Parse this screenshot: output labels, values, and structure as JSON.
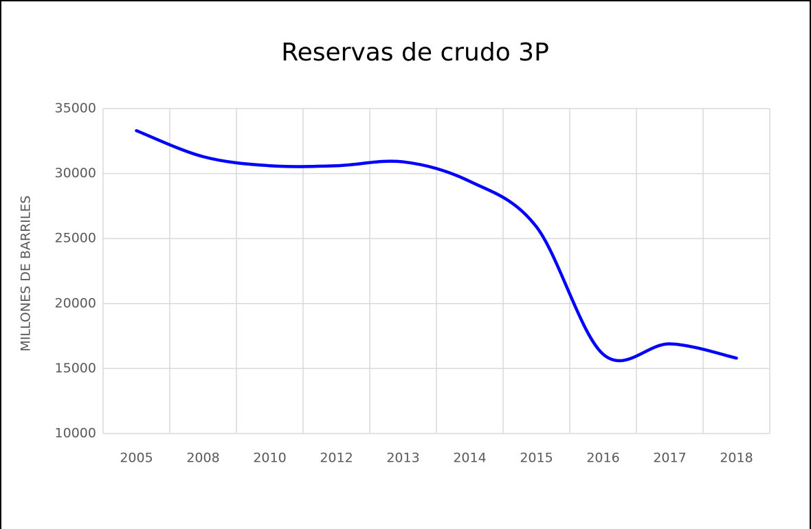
{
  "chart_data": {
    "type": "line",
    "title": "Reservas de crudo 3P",
    "y_label": "MILLONES DE BARRILES",
    "categories": [
      "2005",
      "2008",
      "2010",
      "2012",
      "2013",
      "2014",
      "2015",
      "2016",
      "2017",
      "2018"
    ],
    "series": [
      {
        "name": "Reservas",
        "color": "#0000ff",
        "values": [
          33300,
          31300,
          30600,
          30600,
          30900,
          29400,
          25900,
          16100,
          16900,
          15800
        ]
      }
    ],
    "ylim": [
      10000,
      35000
    ],
    "yticks": [
      10000,
      15000,
      20000,
      25000,
      30000,
      35000
    ],
    "grid": true
  }
}
